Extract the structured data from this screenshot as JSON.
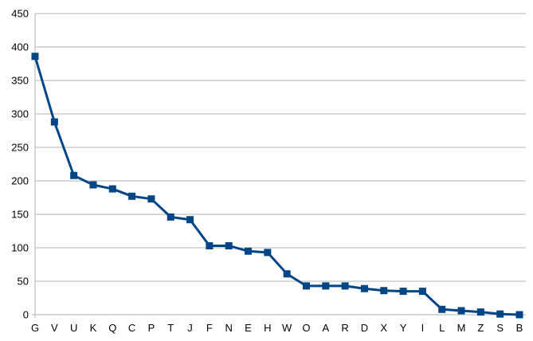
{
  "chart_data": {
    "type": "line",
    "title": "",
    "xlabel": "",
    "ylabel": "",
    "ylim": [
      0,
      450
    ],
    "yticks": [
      0,
      50,
      100,
      150,
      200,
      250,
      300,
      350,
      400,
      450
    ],
    "grid": true,
    "legend": "none",
    "series_color": "#004586",
    "marker": "square",
    "categories": [
      "G",
      "V",
      "U",
      "K",
      "Q",
      "C",
      "P",
      "T",
      "J",
      "F",
      "N",
      "E",
      "H",
      "W",
      "O",
      "A",
      "R",
      "D",
      "X",
      "Y",
      "I",
      "L",
      "M",
      "Z",
      "S",
      "B"
    ],
    "values": [
      386,
      288,
      208,
      194,
      188,
      177,
      173,
      146,
      142,
      103,
      103,
      95,
      93,
      61,
      43,
      43,
      43,
      39,
      36,
      35,
      35,
      8,
      6,
      4,
      1,
      0
    ]
  }
}
